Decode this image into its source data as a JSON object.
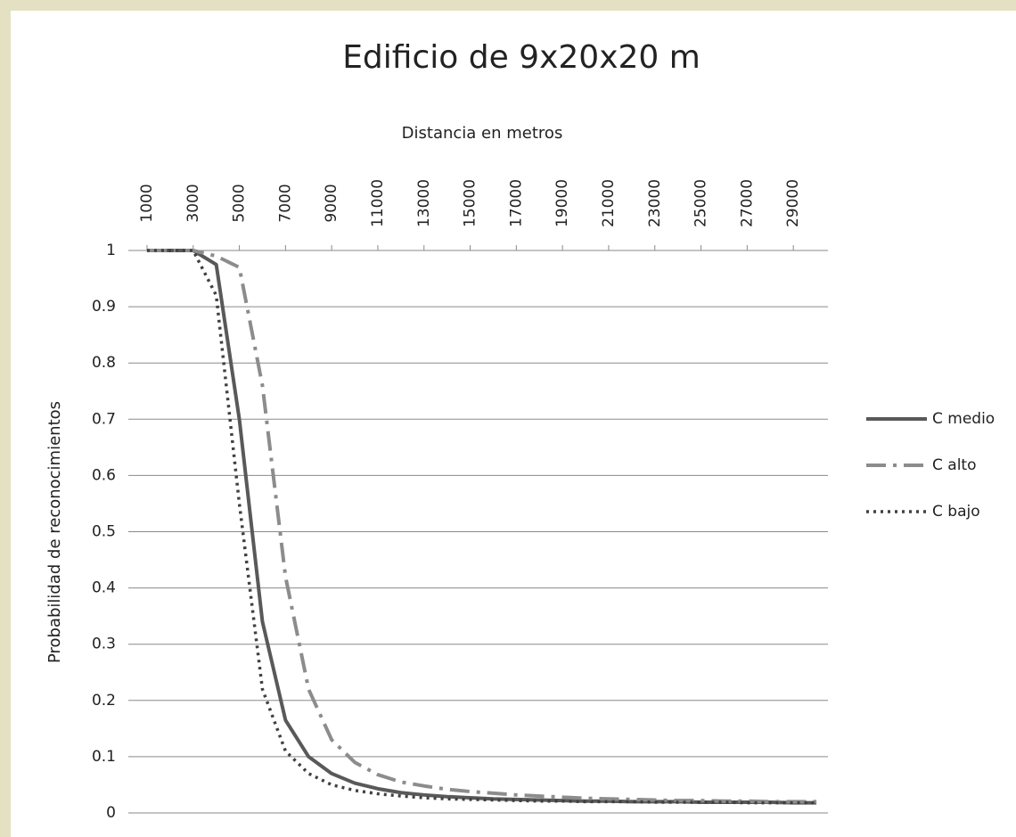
{
  "chart_data": {
    "type": "line",
    "title": "Edificio de 9x20x20 m",
    "xlabel": "Distancia en metros",
    "ylabel": "Probabilidad de reconocimientos",
    "x": [
      1000,
      2000,
      3000,
      4000,
      5000,
      6000,
      7000,
      8000,
      9000,
      10000,
      11000,
      12000,
      13000,
      14000,
      15000,
      16000,
      17000,
      18000,
      19000,
      20000,
      21000,
      22000,
      23000,
      24000,
      25000,
      26000,
      27000,
      28000,
      29000,
      30000
    ],
    "series": [
      {
        "name": "C medio",
        "color": "#595959",
        "dash": "solid",
        "values": [
          1,
          1,
          1,
          0.975,
          0.7,
          0.34,
          0.165,
          0.1,
          0.07,
          0.053,
          0.043,
          0.036,
          0.032,
          0.029,
          0.027,
          0.025,
          0.024,
          0.023,
          0.022,
          0.021,
          0.021,
          0.02,
          0.02,
          0.02,
          0.019,
          0.019,
          0.019,
          0.019,
          0.018,
          0.018
        ]
      },
      {
        "name": "C alto",
        "color": "#8c8c8c",
        "dash": "dashdot",
        "values": [
          1,
          1,
          1,
          0.99,
          0.97,
          0.76,
          0.42,
          0.22,
          0.13,
          0.09,
          0.068,
          0.055,
          0.048,
          0.042,
          0.038,
          0.035,
          0.032,
          0.03,
          0.028,
          0.026,
          0.025,
          0.024,
          0.023,
          0.022,
          0.022,
          0.021,
          0.021,
          0.02,
          0.02,
          0.02
        ]
      },
      {
        "name": "C bajo",
        "color": "#404040",
        "dash": "dot",
        "values": [
          1,
          1,
          1,
          0.92,
          0.55,
          0.22,
          0.11,
          0.07,
          0.05,
          0.04,
          0.034,
          0.03,
          0.027,
          0.025,
          0.024,
          0.023,
          0.022,
          0.021,
          0.021,
          0.02,
          0.02,
          0.02,
          0.019,
          0.019,
          0.019,
          0.019,
          0.018,
          0.018,
          0.018,
          0.018
        ]
      }
    ],
    "xlim": [
      500,
      30500
    ],
    "xticks": [
      1000,
      3000,
      5000,
      7000,
      9000,
      11000,
      13000,
      15000,
      17000,
      19000,
      21000,
      23000,
      25000,
      27000,
      29000
    ],
    "ylim": [
      0,
      1
    ],
    "yticks": [
      0,
      0.1,
      0.2,
      0.3,
      0.4,
      0.5,
      0.6,
      0.7,
      0.8,
      0.9,
      1
    ],
    "grid": true,
    "legend": "right"
  }
}
